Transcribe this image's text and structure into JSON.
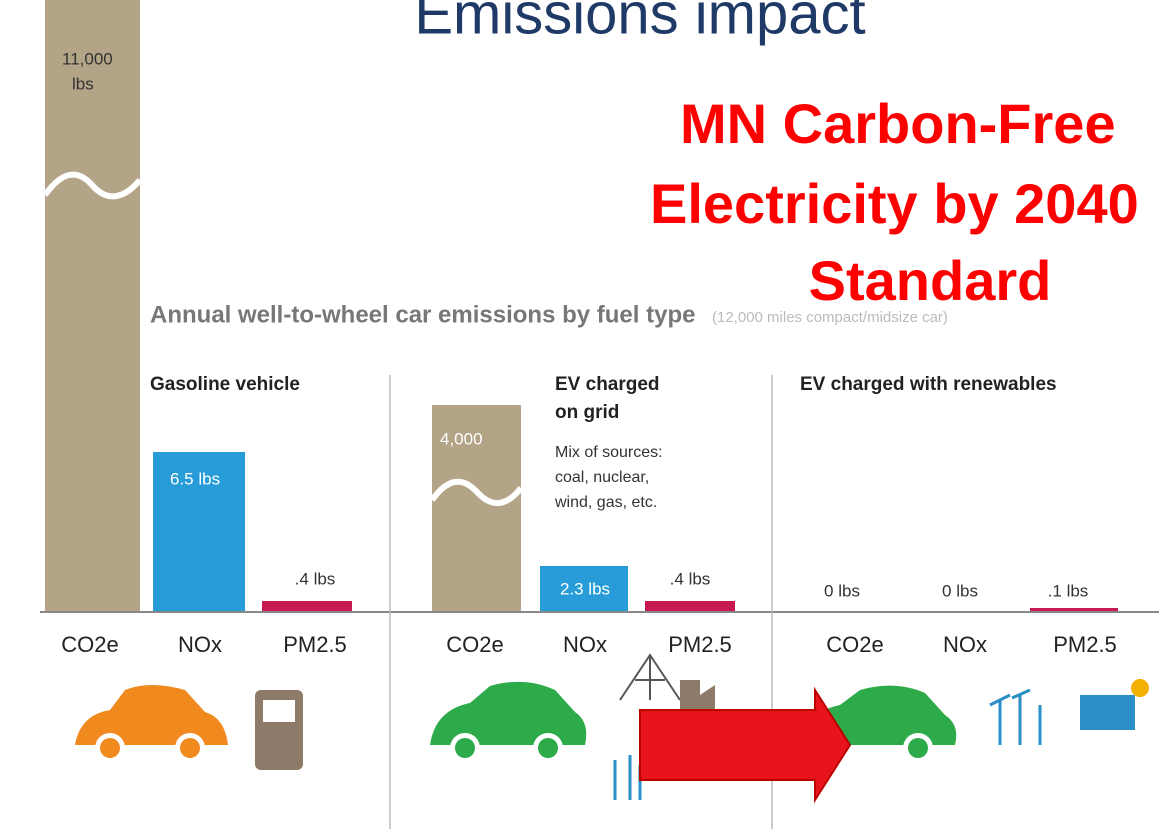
{
  "title": "Emissions impact",
  "overlay": {
    "lines": [
      "MN Carbon-Free",
      "Electricity by 2040",
      "Standard"
    ]
  },
  "subtitle": "Annual well-to-wheel car emissions by fuel type",
  "subtitle_note": "(12,000 miles compact/midsize car)",
  "panels": [
    {
      "heading": [
        "Gasoline vehicle"
      ],
      "note": [],
      "categories": [
        "CO2e",
        "NOx",
        "PM2.5"
      ],
      "labels": [
        [
          "11,000",
          "lbs"
        ],
        [
          "6.5 lbs"
        ],
        [
          ".4 lbs"
        ]
      ]
    },
    {
      "heading": [
        "EV charged",
        "on grid"
      ],
      "note": [
        "Mix of sources:",
        "coal, nuclear,",
        "wind, gas, etc."
      ],
      "categories": [
        "CO2e",
        "NOx",
        "PM2.5"
      ],
      "labels": [
        [
          "4,000"
        ],
        [
          "2.3 lbs"
        ],
        [
          ".4 lbs"
        ]
      ]
    },
    {
      "heading": [
        "EV charged with renewables"
      ],
      "note": [],
      "categories": [
        "CO2e",
        "NOx",
        "PM2.5"
      ],
      "labels": [
        [
          "0 lbs"
        ],
        [
          "0 lbs"
        ],
        [
          ".1 lbs"
        ]
      ]
    }
  ]
}
